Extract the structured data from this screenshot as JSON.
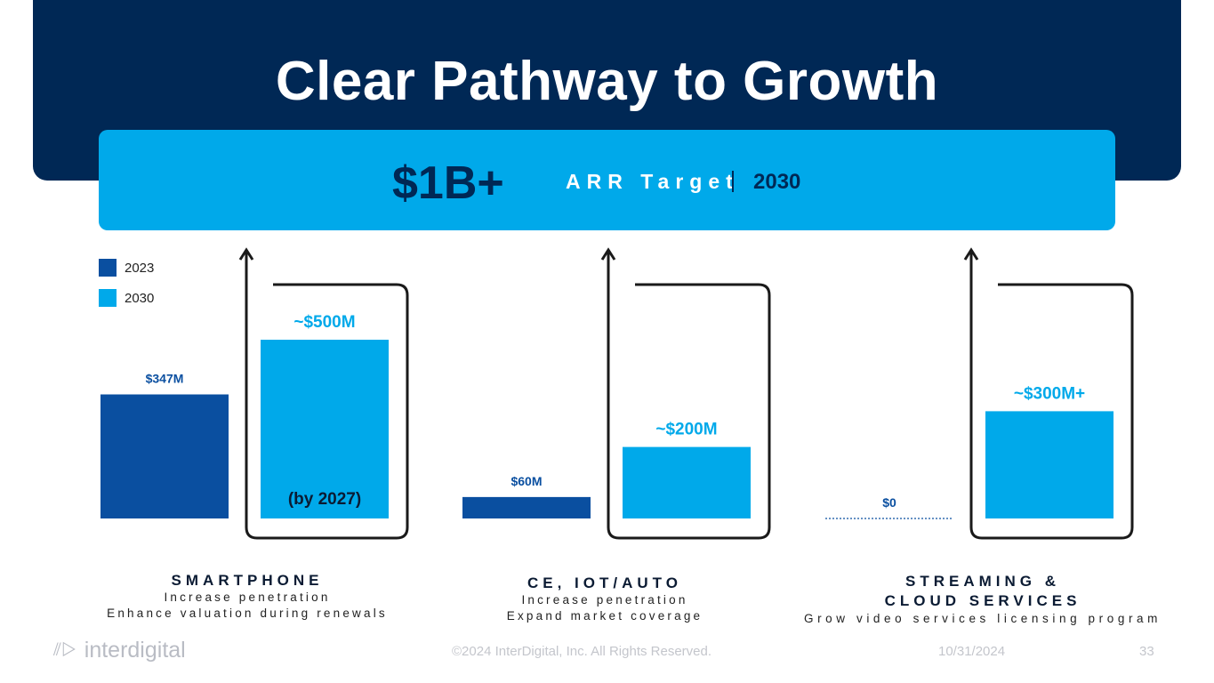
{
  "title": "Clear Pathway to Growth",
  "target": {
    "amount": "$1B+",
    "label": "ARR Target",
    "year": "2030"
  },
  "legend": [
    {
      "label": "2023",
      "color": "#0a4fa0"
    },
    {
      "label": "2030",
      "color": "#00a9ea"
    }
  ],
  "chart_data": {
    "type": "bar",
    "categories": [
      "SMARTPHONE",
      "CE, IOT/AUTO",
      "STREAMING & CLOUD SERVICES"
    ],
    "series": [
      {
        "name": "2023",
        "color": "#0a4fa0",
        "values": [
          347,
          60,
          0
        ],
        "labels": [
          "$347M",
          "$60M",
          "$0"
        ]
      },
      {
        "name": "2030",
        "color": "#00a9ea",
        "values": [
          500,
          200,
          300
        ],
        "labels": [
          "~$500M",
          "~$200M",
          "~$300M+"
        ]
      }
    ],
    "annotations": [
      {
        "category": "SMARTPHONE",
        "series": "2030",
        "text": "(by 2027)"
      }
    ],
    "units": "$M"
  },
  "segments": [
    {
      "name_lines": [
        "SMARTPHONE"
      ],
      "desc_lines": [
        "Increase penetration",
        "Enhance valuation during renewals"
      ]
    },
    {
      "name_lines": [
        "CE, IOT/AUTO"
      ],
      "desc_lines": [
        "Increase penetration",
        "Expand market coverage"
      ]
    },
    {
      "name_lines": [
        "STREAMING &",
        "CLOUD SERVICES"
      ],
      "desc_lines": [
        "Grow video services licensing program"
      ]
    }
  ],
  "footer": {
    "logo": "interdigital",
    "copyright": "©2024 InterDigital, Inc. All Rights Reserved.",
    "date": "10/31/2024",
    "page": "33"
  }
}
